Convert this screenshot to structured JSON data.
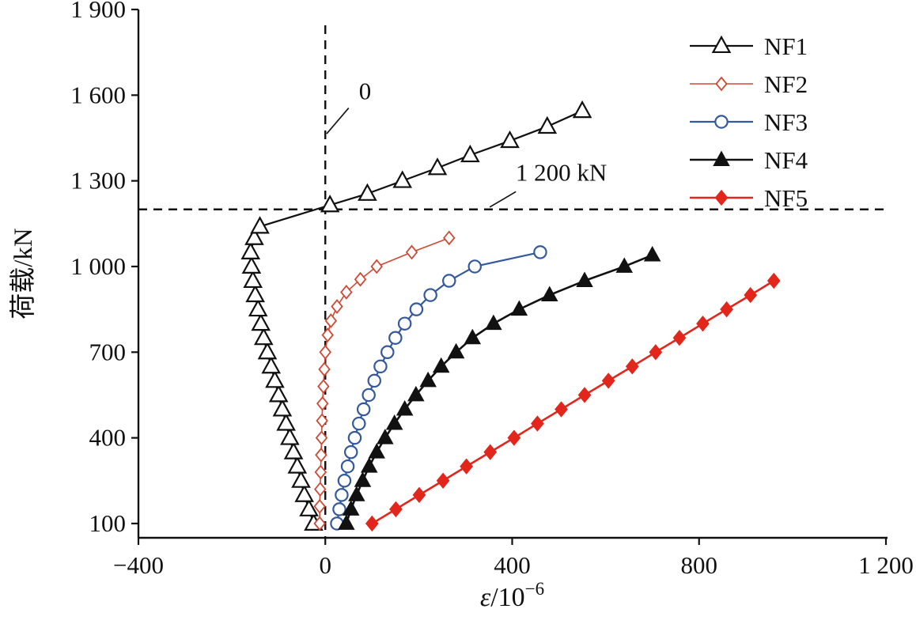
{
  "page": {
    "background": "#ffffff"
  },
  "chart_data": {
    "type": "line",
    "title": "",
    "xlabel": "ε/10⁻⁶",
    "xlabel_parts": {
      "base_italic": "ε",
      "base_rest": "/10",
      "superscript": "−6"
    },
    "ylabel": "荷载/kN",
    "xlim": [
      -400,
      1200
    ],
    "ylim": [
      50,
      1900
    ],
    "grid": false,
    "legend_position": "top-right",
    "x_tick_values": [
      -400,
      0,
      400,
      800,
      1200
    ],
    "x_tick_labels": [
      "−400",
      "0",
      "400",
      "800",
      "1 200"
    ],
    "y_tick_values": [
      100,
      400,
      700,
      1000,
      1300,
      1600,
      1900
    ],
    "y_tick_labels": [
      "100",
      "400",
      "700",
      "1 000",
      "1 300",
      "1 600",
      "1 900"
    ],
    "reference_lines": [
      {
        "orientation": "vertical",
        "x": 0,
        "style": "dashed",
        "color": "#111111"
      },
      {
        "orientation": "horizontal",
        "y": 1200,
        "style": "dashed",
        "color": "#111111"
      }
    ],
    "annotations": [
      {
        "text": "0",
        "text_x": 85,
        "text_y": 1585,
        "line": [
          [
            50,
            1555
          ],
          [
            3,
            1465
          ]
        ]
      },
      {
        "text": "1 200 kN",
        "text_x": 505,
        "text_y": 1300,
        "line": [
          [
            408,
            1262
          ],
          [
            352,
            1208
          ]
        ]
      }
    ],
    "series": [
      {
        "name": "NF1",
        "color": "#111111",
        "marker": "triangle-open",
        "marker_size": 11,
        "line_width": 2.2,
        "points": [
          [
            -25,
            100
          ],
          [
            -35,
            150
          ],
          [
            -45,
            200
          ],
          [
            -52,
            250
          ],
          [
            -60,
            300
          ],
          [
            -68,
            350
          ],
          [
            -76,
            400
          ],
          [
            -84,
            450
          ],
          [
            -92,
            500
          ],
          [
            -100,
            550
          ],
          [
            -108,
            600
          ],
          [
            -116,
            650
          ],
          [
            -124,
            700
          ],
          [
            -132,
            750
          ],
          [
            -138,
            800
          ],
          [
            -144,
            850
          ],
          [
            -150,
            900
          ],
          [
            -155,
            950
          ],
          [
            -158,
            1000
          ],
          [
            -160,
            1050
          ],
          [
            -152,
            1100
          ],
          [
            -140,
            1140
          ],
          [
            10,
            1215
          ],
          [
            90,
            1255
          ],
          [
            165,
            1300
          ],
          [
            240,
            1345
          ],
          [
            310,
            1390
          ],
          [
            395,
            1440
          ],
          [
            475,
            1490
          ],
          [
            550,
            1545
          ]
        ]
      },
      {
        "name": "NF2",
        "color": "#cf4a34",
        "marker": "diamond-open",
        "marker_size": 8,
        "line_width": 1.6,
        "points": [
          [
            -12,
            100
          ],
          [
            -12,
            160
          ],
          [
            -11,
            220
          ],
          [
            -10,
            280
          ],
          [
            -9,
            340
          ],
          [
            -8,
            400
          ],
          [
            -7,
            460
          ],
          [
            -6,
            520
          ],
          [
            -4,
            580
          ],
          [
            -2,
            640
          ],
          [
            0,
            700
          ],
          [
            5,
            760
          ],
          [
            12,
            810
          ],
          [
            25,
            860
          ],
          [
            45,
            910
          ],
          [
            75,
            955
          ],
          [
            110,
            1000
          ],
          [
            185,
            1050
          ],
          [
            265,
            1100
          ]
        ]
      },
      {
        "name": "NF3",
        "color": "#34599d",
        "marker": "circle-open",
        "marker_size": 9,
        "line_width": 2.2,
        "points": [
          [
            25,
            100
          ],
          [
            30,
            150
          ],
          [
            35,
            200
          ],
          [
            41,
            250
          ],
          [
            48,
            300
          ],
          [
            55,
            350
          ],
          [
            63,
            400
          ],
          [
            72,
            450
          ],
          [
            82,
            500
          ],
          [
            93,
            550
          ],
          [
            105,
            600
          ],
          [
            118,
            650
          ],
          [
            133,
            700
          ],
          [
            150,
            750
          ],
          [
            170,
            800
          ],
          [
            195,
            850
          ],
          [
            225,
            900
          ],
          [
            265,
            950
          ],
          [
            320,
            1000
          ],
          [
            460,
            1050
          ]
        ]
      },
      {
        "name": "NF4",
        "color": "#111111",
        "marker": "triangle-filled",
        "marker_size": 10,
        "line_width": 2.6,
        "points": [
          [
            45,
            100
          ],
          [
            55,
            150
          ],
          [
            67,
            200
          ],
          [
            80,
            250
          ],
          [
            94,
            300
          ],
          [
            110,
            350
          ],
          [
            128,
            400
          ],
          [
            148,
            450
          ],
          [
            170,
            500
          ],
          [
            194,
            550
          ],
          [
            220,
            600
          ],
          [
            248,
            650
          ],
          [
            280,
            700
          ],
          [
            315,
            750
          ],
          [
            360,
            800
          ],
          [
            415,
            850
          ],
          [
            480,
            900
          ],
          [
            555,
            950
          ],
          [
            640,
            1000
          ],
          [
            700,
            1040
          ]
        ]
      },
      {
        "name": "NF5",
        "color": "#e2261c",
        "marker": "diamond-filled",
        "marker_size": 9,
        "line_width": 2.6,
        "points": [
          [
            100,
            100
          ],
          [
            151,
            150
          ],
          [
            201,
            200
          ],
          [
            252,
            250
          ],
          [
            302,
            300
          ],
          [
            353,
            350
          ],
          [
            404,
            400
          ],
          [
            454,
            450
          ],
          [
            505,
            500
          ],
          [
            555,
            550
          ],
          [
            606,
            600
          ],
          [
            657,
            650
          ],
          [
            707,
            700
          ],
          [
            758,
            750
          ],
          [
            808,
            800
          ],
          [
            859,
            850
          ],
          [
            910,
            900
          ],
          [
            960,
            950
          ]
        ]
      }
    ]
  }
}
